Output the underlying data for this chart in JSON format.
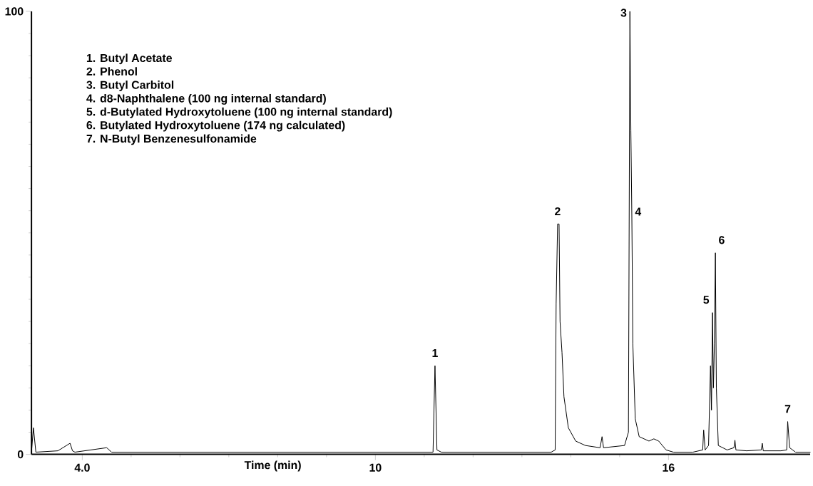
{
  "chart_data": {
    "type": "line",
    "xlabel": "Time (min)",
    "color": "#000000",
    "xlim": [
      2.96,
      18.9
    ],
    "ylim": [
      0,
      100
    ],
    "xticks": [
      {
        "value": 4,
        "label": "4.0"
      },
      10,
      16
    ],
    "yticks": [
      0,
      100
    ],
    "x": [
      2.96,
      3.0,
      3.05,
      3.5,
      3.75,
      3.8,
      3.85,
      4.5,
      4.6,
      4.7,
      6.0,
      8.0,
      10.0,
      11.0,
      11.18,
      11.22,
      11.26,
      11.35,
      12.5,
      13.6,
      13.68,
      13.7,
      13.73,
      13.76,
      13.78,
      13.82,
      13.86,
      13.95,
      14.1,
      14.3,
      14.6,
      14.64,
      14.67,
      15.1,
      15.18,
      15.21,
      15.23,
      15.25,
      15.27,
      15.32,
      15.4,
      15.6,
      15.7,
      15.8,
      15.95,
      16.1,
      16.5,
      16.7,
      16.72,
      16.75,
      16.82,
      16.86,
      16.88,
      16.9,
      16.92,
      16.94,
      16.96,
      16.98,
      17.02,
      17.2,
      17.34,
      17.36,
      17.38,
      17.6,
      17.9,
      17.92,
      17.94,
      18.1,
      18.3,
      18.42,
      18.44,
      18.48,
      18.6,
      18.9
    ],
    "values": [
      0.5,
      6,
      0.5,
      0.8,
      2.5,
      0.8,
      0.5,
      1.5,
      0.5,
      0.5,
      0.5,
      0.5,
      0.5,
      0.5,
      0.5,
      20,
      1,
      0.5,
      0.5,
      0.5,
      1,
      34,
      52,
      52,
      30,
      23,
      13,
      6,
      3,
      2,
      1.5,
      4,
      1.5,
      2,
      5,
      100,
      73,
      53.5,
      25,
      8,
      4,
      3,
      3.5,
      3,
      1,
      0.5,
      0.5,
      1,
      5.5,
      1,
      2,
      20,
      10,
      32,
      15,
      25,
      45.5,
      15,
      2,
      1,
      1.5,
      3.2,
      1,
      0.8,
      1,
      2.5,
      0.8,
      0.8,
      0.8,
      1,
      7.4,
      1.5,
      0.5,
      0.5
    ],
    "annotations": [
      "1. Butyl Acetate",
      "2. Phenol",
      "3. Butyl Carbitol",
      "4. d8-Naphthalene (100 ng internal standard)",
      "5. d-Butylated Hydroxytoluene (100 ng internal standard)",
      "6. Butylated Hydroxytoluene (174 ng calculated)",
      "7. N-Butyl Benzenesulfonamide",
      {
        "text": "1",
        "x": 11.22,
        "y": 20
      },
      {
        "text": "2",
        "x": 13.73,
        "y": 52
      },
      {
        "text": "3",
        "x": 15.21,
        "y": 100
      },
      {
        "text": "4",
        "x": 15.25,
        "y": 53.5
      },
      {
        "text": "5",
        "x": 16.9,
        "y": 32
      },
      {
        "text": "6",
        "x": 16.96,
        "y": 45.5
      },
      {
        "text": "7",
        "x": 18.44,
        "y": 7.4
      }
    ]
  }
}
